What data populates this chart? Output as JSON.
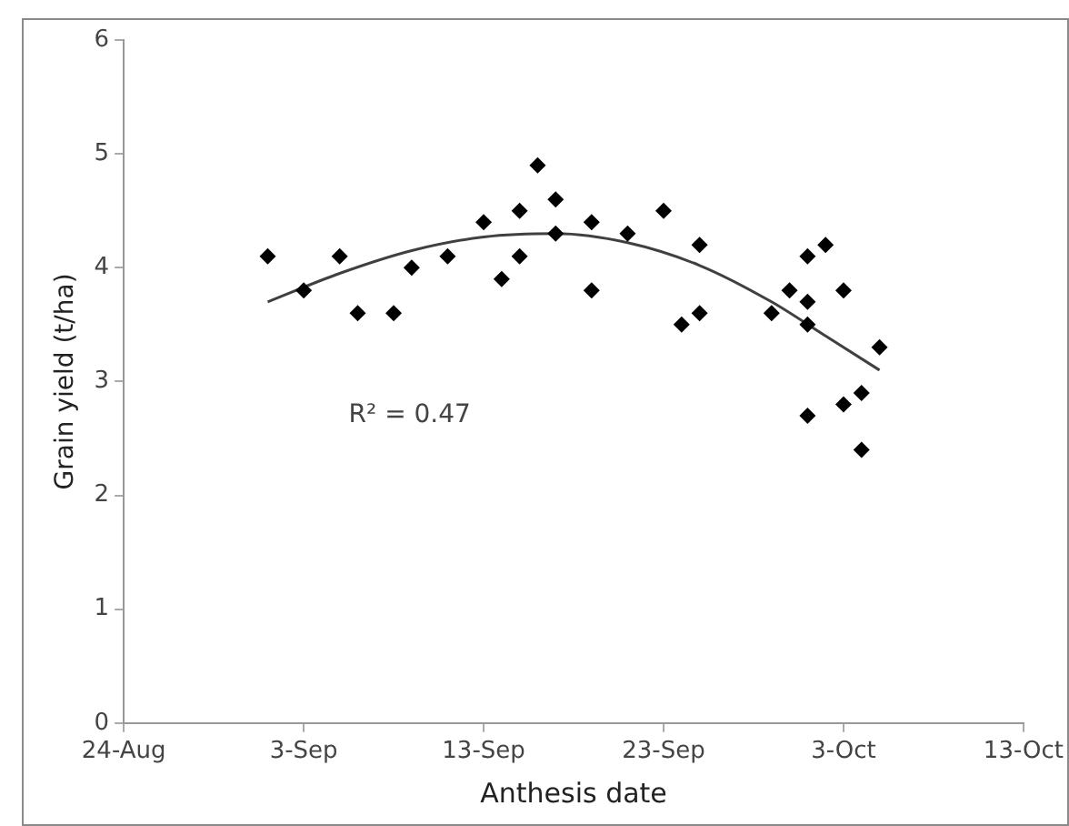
{
  "chart_data": {
    "type": "scatter",
    "xlabel": "Anthesis date",
    "ylabel": "Grain yield (t/ha)",
    "xlim": [
      "--08-24",
      "--10-13"
    ],
    "xticks": [
      {
        "value": "--08-24",
        "label": "24-Aug"
      },
      {
        "value": "--09-03",
        "label": "3-Sep"
      },
      {
        "value": "--09-13",
        "label": "13-Sep"
      },
      {
        "value": "--09-23",
        "label": "23-Sep"
      },
      {
        "value": "--10-03",
        "label": "3-Oct"
      },
      {
        "value": "--10-13",
        "label": "13-Oct"
      }
    ],
    "ylim": [
      0,
      6
    ],
    "yticks": [
      0,
      1,
      2,
      3,
      4,
      5,
      6
    ],
    "grid": false,
    "legend": false,
    "annotations": [
      "R² = 0.47"
    ],
    "series": [
      {
        "color": "#000000",
        "marker": "diamond",
        "x": [
          "--09-01",
          "--09-03",
          "--09-05",
          "--09-06",
          "--09-08",
          "--09-09",
          "--09-11",
          "--09-13",
          "--09-14",
          "--09-15",
          "--09-15",
          "--09-16",
          "--09-17",
          "--09-17",
          "--09-19",
          "--09-19",
          "--09-21",
          "--09-23",
          "--09-24",
          "--09-25",
          "--09-25",
          "--09-29",
          "--09-30",
          "--10-01",
          "--10-01",
          "--10-01",
          "--10-01",
          "--10-02",
          "--10-03",
          "--10-03",
          "--10-04",
          "--10-04",
          "--10-05"
        ],
        "values": [
          4.1,
          3.8,
          4.1,
          3.6,
          3.6,
          4.0,
          4.1,
          4.4,
          3.9,
          4.5,
          4.1,
          4.9,
          4.6,
          4.3,
          4.4,
          3.8,
          4.3,
          4.5,
          3.5,
          4.2,
          3.6,
          3.6,
          3.8,
          4.1,
          3.7,
          3.5,
          2.7,
          4.2,
          3.8,
          2.8,
          2.9,
          2.4,
          3.3
        ]
      },
      {
        "type": "line",
        "color": "#404040",
        "marker": "none",
        "line_style": "solid",
        "x": [
          "--09-01",
          "--09-05",
          "--09-09",
          "--09-13",
          "--09-17",
          "--09-21",
          "--09-25",
          "--09-29",
          "--10-02",
          "--10-05"
        ],
        "values": [
          3.7,
          3.95,
          4.15,
          4.27,
          4.3,
          4.22,
          4.02,
          3.7,
          3.4,
          3.1
        ]
      }
    ]
  }
}
